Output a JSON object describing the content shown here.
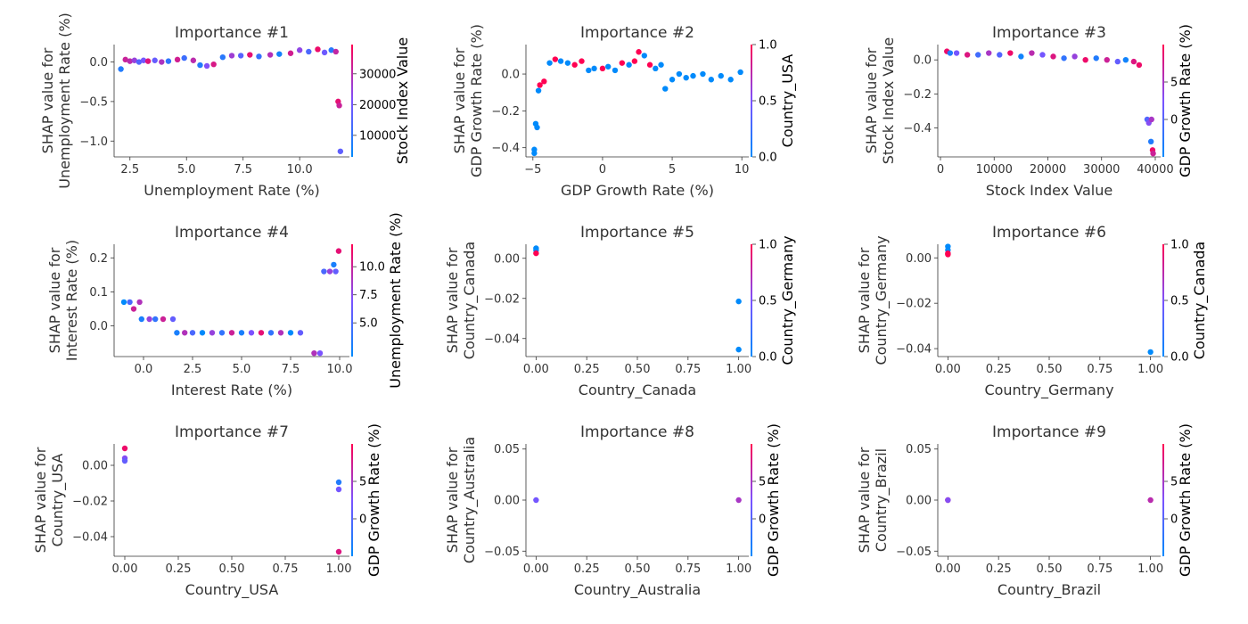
{
  "chart_data": [
    {
      "type": "scatter",
      "title": "Importance #1",
      "xlabel": "Unemployment Rate (%)",
      "ylabel": [
        "SHAP value for",
        "Unemployment Rate (%)"
      ],
      "colorbar_label": "Stock Index Value",
      "xlim": [
        1.8,
        12.2
      ],
      "ylim": [
        -1.2,
        0.22
      ],
      "xticks": [
        2.5,
        5.0,
        7.5,
        10.0
      ],
      "xtick_labels": [
        "2.5",
        "5.0",
        "7.5",
        "10.0"
      ],
      "yticks": [
        -1.0,
        -0.5,
        0.0
      ],
      "ytick_labels": [
        "−1.0",
        "−0.5",
        "0.0"
      ],
      "clim": [
        3000,
        39500
      ],
      "cticks": [
        10000,
        20000,
        30000
      ],
      "ctick_labels": [
        "10000",
        "20000",
        "30000"
      ],
      "points": [
        [
          2.1,
          -0.09,
          8000
        ],
        [
          2.3,
          0.03,
          32000
        ],
        [
          2.5,
          0.01,
          30000
        ],
        [
          2.7,
          0.02,
          25000
        ],
        [
          2.9,
          0.0,
          15000
        ],
        [
          3.1,
          0.02,
          20000
        ],
        [
          3.3,
          0.01,
          35000
        ],
        [
          3.6,
          0.02,
          18000
        ],
        [
          3.9,
          0.0,
          28000
        ],
        [
          4.2,
          0.01,
          10000
        ],
        [
          4.6,
          0.03,
          33000
        ],
        [
          4.9,
          0.05,
          12000
        ],
        [
          5.3,
          0.02,
          30000
        ],
        [
          5.6,
          -0.04,
          8000
        ],
        [
          5.9,
          -0.05,
          22000
        ],
        [
          6.2,
          -0.03,
          34000
        ],
        [
          6.6,
          0.06,
          9000
        ],
        [
          7.0,
          0.08,
          26000
        ],
        [
          7.4,
          0.08,
          16000
        ],
        [
          7.8,
          0.09,
          36000
        ],
        [
          8.2,
          0.07,
          11000
        ],
        [
          8.7,
          0.09,
          29000
        ],
        [
          9.1,
          0.1,
          6000
        ],
        [
          9.6,
          0.11,
          33000
        ],
        [
          10.0,
          0.15,
          24000
        ],
        [
          10.4,
          0.13,
          14000
        ],
        [
          10.8,
          0.16,
          37000
        ],
        [
          11.1,
          0.12,
          19000
        ],
        [
          11.4,
          0.15,
          9000
        ],
        [
          11.6,
          0.13,
          31000
        ],
        [
          11.7,
          -0.5,
          36000
        ],
        [
          11.75,
          -0.55,
          32000
        ],
        [
          11.8,
          -1.13,
          17000
        ]
      ]
    },
    {
      "type": "scatter",
      "title": "Importance #2",
      "xlabel": "GDP Growth Rate (%)",
      "ylabel": [
        "SHAP value for",
        "GDP Growth Rate (%)"
      ],
      "colorbar_label": "Country_USA",
      "xlim": [
        -5.5,
        10.5
      ],
      "ylim": [
        -0.45,
        0.16
      ],
      "xticks": [
        -5,
        0,
        5,
        10
      ],
      "xtick_labels": [
        "−5",
        "0",
        "5",
        "10"
      ],
      "yticks": [
        -0.4,
        -0.2,
        0.0
      ],
      "ytick_labels": [
        "−0.4",
        "−0.2",
        "0.0"
      ],
      "clim": [
        0,
        1
      ],
      "cticks": [
        0.0,
        0.5,
        1.0
      ],
      "ctick_labels": [
        "0.0",
        "0.5",
        "1.0"
      ],
      "points": [
        [
          -4.9,
          -0.43,
          0
        ],
        [
          -4.9,
          -0.41,
          0
        ],
        [
          -4.8,
          -0.27,
          0
        ],
        [
          -4.7,
          -0.29,
          0
        ],
        [
          -4.6,
          -0.09,
          0
        ],
        [
          -4.5,
          -0.06,
          1
        ],
        [
          -4.2,
          -0.04,
          1
        ],
        [
          -3.8,
          0.06,
          0
        ],
        [
          -3.4,
          0.08,
          1
        ],
        [
          -3.0,
          0.07,
          0
        ],
        [
          -2.5,
          0.06,
          0
        ],
        [
          -2.0,
          0.05,
          1
        ],
        [
          -1.5,
          0.07,
          1
        ],
        [
          -1.0,
          0.02,
          0
        ],
        [
          -0.6,
          0.03,
          0
        ],
        [
          0.0,
          0.03,
          1
        ],
        [
          0.4,
          0.04,
          0
        ],
        [
          0.9,
          0.02,
          0
        ],
        [
          1.4,
          0.06,
          1
        ],
        [
          1.9,
          0.05,
          0
        ],
        [
          2.3,
          0.07,
          1
        ],
        [
          2.6,
          0.12,
          1
        ],
        [
          3.0,
          0.1,
          0
        ],
        [
          3.4,
          0.05,
          1
        ],
        [
          3.8,
          0.03,
          0
        ],
        [
          4.2,
          0.05,
          0
        ],
        [
          4.5,
          -0.08,
          0
        ],
        [
          5.0,
          -0.03,
          0
        ],
        [
          5.5,
          0.0,
          0
        ],
        [
          6.0,
          -0.02,
          0
        ],
        [
          6.5,
          -0.01,
          0
        ],
        [
          7.2,
          0.0,
          0
        ],
        [
          7.8,
          -0.03,
          0
        ],
        [
          8.5,
          -0.01,
          0
        ],
        [
          9.2,
          -0.03,
          0
        ],
        [
          9.9,
          0.01,
          0
        ]
      ]
    },
    {
      "type": "scatter",
      "title": "Importance #3",
      "xlabel": "Stock Index Value",
      "ylabel": [
        "SHAP value for",
        "Stock Index Value"
      ],
      "colorbar_label": "GDP Growth Rate (%)",
      "xlim": [
        -500,
        41000
      ],
      "ylim": [
        -0.57,
        0.09
      ],
      "xticks": [
        0,
        10000,
        20000,
        30000,
        40000
      ],
      "xtick_labels": [
        "0",
        "10000",
        "20000",
        "30000",
        "40000"
      ],
      "yticks": [
        -0.4,
        -0.2,
        0.0
      ],
      "ytick_labels": [
        "−0.4",
        "−0.2",
        "0.0"
      ],
      "clim": [
        -5,
        10
      ],
      "cticks": [
        0,
        5
      ],
      "ctick_labels": [
        "0",
        "5"
      ],
      "points": [
        [
          1200,
          0.05,
          9
        ],
        [
          1800,
          0.04,
          -3
        ],
        [
          3000,
          0.04,
          2
        ],
        [
          5000,
          0.03,
          8
        ],
        [
          7000,
          0.03,
          -1
        ],
        [
          9000,
          0.04,
          5
        ],
        [
          11000,
          0.03,
          0
        ],
        [
          13000,
          0.04,
          9
        ],
        [
          15000,
          0.02,
          -4
        ],
        [
          17000,
          0.04,
          6
        ],
        [
          19000,
          0.03,
          2
        ],
        [
          21000,
          0.02,
          8
        ],
        [
          23000,
          0.01,
          -2
        ],
        [
          25000,
          0.02,
          4
        ],
        [
          27000,
          0.0,
          9
        ],
        [
          29000,
          0.01,
          -3
        ],
        [
          31000,
          0.0,
          7
        ],
        [
          33000,
          -0.01,
          1
        ],
        [
          34500,
          0.0,
          -4
        ],
        [
          36000,
          -0.01,
          8
        ],
        [
          37000,
          -0.03,
          9
        ],
        [
          38500,
          -0.35,
          0
        ],
        [
          38800,
          -0.37,
          3
        ],
        [
          39200,
          -0.48,
          -3
        ],
        [
          39300,
          -0.35,
          5
        ],
        [
          39500,
          -0.53,
          9
        ],
        [
          39600,
          -0.55,
          7
        ]
      ]
    },
    {
      "type": "scatter",
      "title": "Importance #4",
      "xlabel": "Interest Rate (%)",
      "ylabel": [
        "SHAP value for",
        "Interest Rate (%)"
      ],
      "colorbar_label": "Unemployment Rate (%)",
      "xlim": [
        -1.5,
        10.5
      ],
      "ylim": [
        -0.09,
        0.24
      ],
      "xticks": [
        0.0,
        2.5,
        5.0,
        7.5,
        10.0
      ],
      "xtick_labels": [
        "0.0",
        "2.5",
        "5.0",
        "7.5",
        "10.0"
      ],
      "yticks": [
        0.0,
        0.1,
        0.2
      ],
      "ytick_labels": [
        "0.0",
        "0.1",
        "0.2"
      ],
      "clim": [
        2,
        12
      ],
      "cticks": [
        5.0,
        7.5,
        10.0
      ],
      "ctick_labels": [
        "5.0",
        "7.5",
        "10.0"
      ],
      "points": [
        [
          -1.0,
          0.07,
          2
        ],
        [
          -0.7,
          0.07,
          5
        ],
        [
          -0.5,
          0.05,
          10
        ],
        [
          -0.2,
          0.07,
          9
        ],
        [
          -0.1,
          0.02,
          3
        ],
        [
          0.3,
          0.02,
          8
        ],
        [
          0.6,
          0.02,
          4
        ],
        [
          1.0,
          0.02,
          10
        ],
        [
          1.5,
          0.02,
          6
        ],
        [
          1.7,
          -0.02,
          3
        ],
        [
          2.1,
          -0.02,
          9
        ],
        [
          2.5,
          -0.02,
          5
        ],
        [
          3.0,
          -0.02,
          2
        ],
        [
          3.5,
          -0.02,
          8
        ],
        [
          4.0,
          -0.02,
          4
        ],
        [
          4.5,
          -0.02,
          10
        ],
        [
          5.0,
          -0.02,
          3
        ],
        [
          5.5,
          -0.02,
          7
        ],
        [
          6.0,
          -0.02,
          11
        ],
        [
          6.5,
          -0.02,
          4
        ],
        [
          7.0,
          -0.02,
          9
        ],
        [
          7.5,
          -0.02,
          2
        ],
        [
          8.0,
          -0.02,
          6
        ],
        [
          8.7,
          -0.08,
          9
        ],
        [
          9.0,
          -0.08,
          7
        ],
        [
          9.2,
          0.16,
          5
        ],
        [
          9.5,
          0.16,
          8
        ],
        [
          9.7,
          0.18,
          3
        ],
        [
          9.8,
          0.16,
          6
        ],
        [
          9.95,
          0.22,
          11
        ]
      ]
    },
    {
      "type": "scatter",
      "title": "Importance #5",
      "xlabel": "Country_Canada",
      "ylabel": [
        "SHAP value for",
        "Country_Canada"
      ],
      "colorbar_label": "Country_Germany",
      "xlim": [
        -0.05,
        1.05
      ],
      "ylim": [
        -0.049,
        0.007
      ],
      "xticks": [
        0.0,
        0.25,
        0.5,
        0.75,
        1.0
      ],
      "xtick_labels": [
        "0.00",
        "0.25",
        "0.50",
        "0.75",
        "1.00"
      ],
      "yticks": [
        -0.04,
        -0.02,
        0.0
      ],
      "ytick_labels": [
        "−0.04",
        "−0.02",
        "0.00"
      ],
      "clim": [
        0,
        1
      ],
      "cticks": [
        0.0,
        0.5,
        1.0
      ],
      "ctick_labels": [
        "0.0",
        "0.5",
        "1.0"
      ],
      "points": [
        [
          0.0,
          0.005,
          0
        ],
        [
          0.0,
          0.004,
          0
        ],
        [
          0.0,
          0.0025,
          1
        ],
        [
          1.0,
          -0.0215,
          0
        ],
        [
          1.0,
          -0.0455,
          0
        ]
      ]
    },
    {
      "type": "scatter",
      "title": "Importance #6",
      "xlabel": "Country_Germany",
      "ylabel": [
        "SHAP value for",
        "Country_Germany"
      ],
      "colorbar_label": "Country_Canada",
      "xlim": [
        -0.05,
        1.05
      ],
      "ylim": [
        -0.0435,
        0.006
      ],
      "xticks": [
        0.0,
        0.25,
        0.5,
        0.75,
        1.0
      ],
      "xtick_labels": [
        "0.00",
        "0.25",
        "0.50",
        "0.75",
        "1.00"
      ],
      "yticks": [
        -0.04,
        -0.02,
        0.0
      ],
      "ytick_labels": [
        "−0.04",
        "−0.02",
        "0.00"
      ],
      "clim": [
        0,
        1
      ],
      "cticks": [
        0.0,
        0.5,
        1.0
      ],
      "ctick_labels": [
        "0.0",
        "0.5",
        "1.0"
      ],
      "points": [
        [
          0.0,
          0.005,
          0
        ],
        [
          0.0,
          0.0035,
          0
        ],
        [
          0.0,
          0.002,
          1
        ],
        [
          0.0,
          0.0015,
          1
        ],
        [
          1.0,
          -0.0415,
          0
        ]
      ]
    },
    {
      "type": "scatter",
      "title": "Importance #7",
      "xlabel": "Country_USA",
      "ylabel": [
        "SHAP value for",
        "Country_USA"
      ],
      "colorbar_label": "GDP Growth Rate (%)",
      "xlim": [
        -0.05,
        1.05
      ],
      "ylim": [
        -0.051,
        0.012
      ],
      "xticks": [
        0.0,
        0.25,
        0.5,
        0.75,
        1.0
      ],
      "xtick_labels": [
        "0.00",
        "0.25",
        "0.50",
        "0.75",
        "1.00"
      ],
      "yticks": [
        -0.04,
        -0.02,
        0.0
      ],
      "ytick_labels": [
        "−0.04",
        "−0.02",
        "0.00"
      ],
      "clim": [
        -5,
        10
      ],
      "cticks": [
        0,
        5
      ],
      "ctick_labels": [
        "0",
        "5"
      ],
      "points": [
        [
          0.0,
          0.0095,
          9
        ],
        [
          0.0,
          0.004,
          3
        ],
        [
          0.0,
          0.0025,
          1
        ],
        [
          1.0,
          -0.0095,
          -3
        ],
        [
          1.0,
          -0.0135,
          2
        ],
        [
          1.0,
          -0.0485,
          8
        ]
      ]
    },
    {
      "type": "scatter",
      "title": "Importance #8",
      "xlabel": "Country_Australia",
      "ylabel": [
        "SHAP value for",
        "Country_Australia"
      ],
      "colorbar_label": "GDP Growth Rate (%)",
      "xlim": [
        -0.05,
        1.05
      ],
      "ylim": [
        -0.055,
        0.055
      ],
      "xticks": [
        0.0,
        0.25,
        0.5,
        0.75,
        1.0
      ],
      "xtick_labels": [
        "0.00",
        "0.25",
        "0.50",
        "0.75",
        "1.00"
      ],
      "yticks": [
        -0.05,
        0.0,
        0.05
      ],
      "ytick_labels": [
        "−0.05",
        "0.00",
        "0.05"
      ],
      "clim": [
        -5,
        10
      ],
      "cticks": [
        0,
        5
      ],
      "ctick_labels": [
        "0",
        "5"
      ],
      "points": [
        [
          0.0,
          0.0,
          2
        ],
        [
          1.0,
          0.0,
          5
        ]
      ]
    },
    {
      "type": "scatter",
      "title": "Importance #9",
      "xlabel": "Country_Brazil",
      "ylabel": [
        "SHAP value for",
        "Country_Brazil"
      ],
      "colorbar_label": "GDP Growth Rate (%)",
      "xlim": [
        -0.05,
        1.05
      ],
      "ylim": [
        -0.055,
        0.055
      ],
      "xticks": [
        0.0,
        0.25,
        0.5,
        0.75,
        1.0
      ],
      "xtick_labels": [
        "0.00",
        "0.25",
        "0.50",
        "0.75",
        "1.00"
      ],
      "yticks": [
        -0.05,
        0.0,
        0.05
      ],
      "ytick_labels": [
        "−0.05",
        "0.00",
        "0.05"
      ],
      "clim": [
        -5,
        10
      ],
      "cticks": [
        0,
        5
      ],
      "ctick_labels": [
        "0",
        "5"
      ],
      "points": [
        [
          0.0,
          0.0,
          9
        ],
        [
          0.0,
          0.0,
          3
        ],
        [
          1.0,
          0.0,
          6
        ]
      ]
    }
  ],
  "colors": {
    "colormap_low": "#008afb",
    "colormap_mid": "#7c52ff",
    "colormap_high": "#ff0052"
  }
}
